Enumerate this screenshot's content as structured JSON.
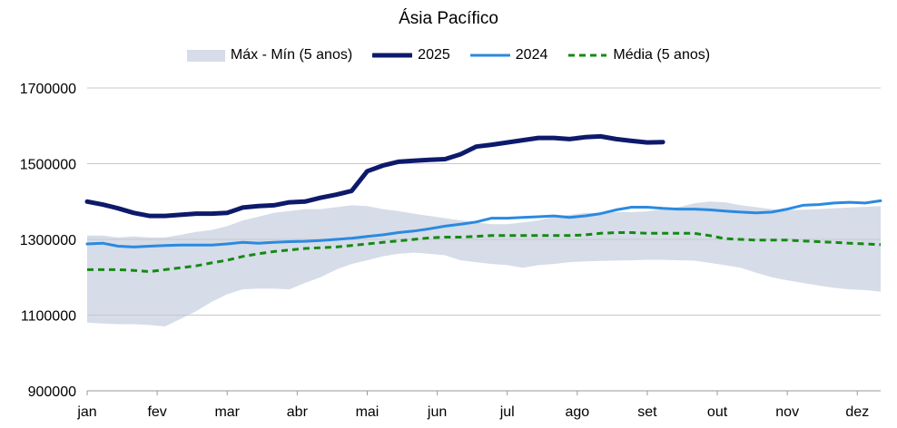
{
  "chart_data": {
    "type": "line",
    "title": "Ásia Pacífico",
    "xlabel": "",
    "ylabel": "",
    "ylim": [
      900000,
      1700000
    ],
    "yticks": [
      "1700000",
      "1500000",
      "1300000",
      "1100000",
      "900000"
    ],
    "ytick_values": [
      1700000,
      1500000,
      1300000,
      1100000,
      900000
    ],
    "xlim": [
      1,
      52
    ],
    "xticks": [
      "jan",
      "fev",
      "mar",
      "abr",
      "mai",
      "jun",
      "jul",
      "ago",
      "set",
      "out",
      "nov",
      "dez"
    ],
    "xtick_weeks": [
      1,
      5.5,
      10,
      14.5,
      19,
      23.5,
      28,
      32.5,
      37,
      41.5,
      46,
      50.5
    ],
    "grid": true,
    "legend_position": "top",
    "band": {
      "name": "Máx - Mín (5 anos)",
      "color": "#d6dce8",
      "x": [
        1,
        2,
        3,
        4,
        5,
        6,
        7,
        8,
        9,
        10,
        11,
        12,
        13,
        14,
        15,
        16,
        17,
        18,
        19,
        20,
        21,
        22,
        23,
        24,
        25,
        26,
        27,
        28,
        29,
        30,
        31,
        32,
        33,
        34,
        35,
        36,
        37,
        38,
        39,
        40,
        41,
        42,
        43,
        44,
        45,
        46,
        47,
        48,
        49,
        50,
        51,
        52
      ],
      "upper": [
        1310000,
        1310000,
        1305000,
        1308000,
        1305000,
        1305000,
        1312000,
        1320000,
        1325000,
        1335000,
        1350000,
        1360000,
        1370000,
        1375000,
        1380000,
        1380000,
        1385000,
        1390000,
        1388000,
        1380000,
        1375000,
        1368000,
        1362000,
        1356000,
        1350000,
        1345000,
        1340000,
        1340000,
        1345000,
        1350000,
        1360000,
        1365000,
        1370000,
        1370000,
        1372000,
        1372000,
        1374000,
        1380000,
        1385000,
        1395000,
        1400000,
        1398000,
        1390000,
        1385000,
        1380000,
        1378000,
        1378000,
        1380000,
        1382000,
        1384000,
        1386000,
        1388000
      ],
      "lower": [
        1080000,
        1078000,
        1076000,
        1076000,
        1074000,
        1070000,
        1090000,
        1110000,
        1135000,
        1155000,
        1168000,
        1170000,
        1170000,
        1168000,
        1185000,
        1200000,
        1220000,
        1235000,
        1245000,
        1255000,
        1262000,
        1265000,
        1262000,
        1258000,
        1245000,
        1240000,
        1235000,
        1232000,
        1225000,
        1232000,
        1235000,
        1240000,
        1242000,
        1243000,
        1244000,
        1245000,
        1246000,
        1246000,
        1245000,
        1244000,
        1238000,
        1232000,
        1225000,
        1212000,
        1200000,
        1192000,
        1185000,
        1178000,
        1172000,
        1168000,
        1166000,
        1162000
      ]
    },
    "series": [
      {
        "name": "2025",
        "color": "#0d1a6b",
        "style": "solid",
        "x": [
          1,
          2,
          3,
          4,
          5,
          6,
          7,
          8,
          9,
          10,
          11,
          12,
          13,
          14,
          15,
          16,
          17,
          18,
          19,
          20,
          21,
          22,
          23,
          24,
          25,
          26,
          27,
          28,
          29,
          30,
          31,
          32,
          33,
          34,
          35,
          36,
          37,
          38
        ],
        "values": [
          1400000,
          1392000,
          1382000,
          1370000,
          1362000,
          1362000,
          1365000,
          1368000,
          1368000,
          1370000,
          1384000,
          1388000,
          1390000,
          1398000,
          1400000,
          1410000,
          1418000,
          1428000,
          1480000,
          1495000,
          1505000,
          1508000,
          1510000,
          1512000,
          1525000,
          1545000,
          1550000,
          1556000,
          1562000,
          1568000,
          1568000,
          1565000,
          1570000,
          1572000,
          1565000,
          1560000,
          1556000,
          1557000
        ]
      },
      {
        "name": "2024",
        "color": "#2a8ae0",
        "style": "solid",
        "x": [
          1,
          2,
          3,
          4,
          5,
          6,
          7,
          8,
          9,
          10,
          11,
          12,
          13,
          14,
          15,
          16,
          17,
          18,
          19,
          20,
          21,
          22,
          23,
          24,
          25,
          26,
          27,
          28,
          29,
          30,
          31,
          32,
          33,
          34,
          35,
          36,
          37,
          38,
          39,
          40,
          41,
          42,
          43,
          44,
          45,
          46,
          47,
          48,
          49,
          50,
          51,
          52
        ],
        "values": [
          1288000,
          1290000,
          1282000,
          1280000,
          1282000,
          1284000,
          1285000,
          1285000,
          1285000,
          1288000,
          1292000,
          1290000,
          1292000,
          1294000,
          1295000,
          1297000,
          1300000,
          1303000,
          1308000,
          1312000,
          1318000,
          1322000,
          1328000,
          1335000,
          1340000,
          1346000,
          1356000,
          1356000,
          1358000,
          1360000,
          1362000,
          1358000,
          1362000,
          1368000,
          1378000,
          1385000,
          1385000,
          1382000,
          1380000,
          1380000,
          1378000,
          1375000,
          1372000,
          1370000,
          1372000,
          1380000,
          1390000,
          1392000,
          1396000,
          1398000,
          1396000,
          1402000
        ]
      },
      {
        "name": "Média (5 anos)",
        "color": "#148a14",
        "style": "dashed",
        "x": [
          1,
          2,
          3,
          4,
          5,
          6,
          7,
          8,
          9,
          10,
          11,
          12,
          13,
          14,
          15,
          16,
          17,
          18,
          19,
          20,
          21,
          22,
          23,
          24,
          25,
          26,
          27,
          28,
          29,
          30,
          31,
          32,
          33,
          34,
          35,
          36,
          37,
          38,
          39,
          40,
          41,
          42,
          43,
          44,
          45,
          46,
          47,
          48,
          49,
          50,
          51,
          52
        ],
        "values": [
          1220000,
          1220000,
          1220000,
          1218000,
          1215000,
          1220000,
          1225000,
          1230000,
          1238000,
          1245000,
          1255000,
          1262000,
          1268000,
          1272000,
          1276000,
          1278000,
          1280000,
          1284000,
          1288000,
          1292000,
          1296000,
          1300000,
          1304000,
          1306000,
          1306000,
          1308000,
          1310000,
          1310000,
          1310000,
          1310000,
          1310000,
          1310000,
          1312000,
          1316000,
          1318000,
          1318000,
          1316000,
          1316000,
          1316000,
          1316000,
          1310000,
          1302000,
          1300000,
          1298000,
          1298000,
          1298000,
          1296000,
          1294000,
          1292000,
          1290000,
          1288000,
          1286000
        ]
      }
    ]
  }
}
